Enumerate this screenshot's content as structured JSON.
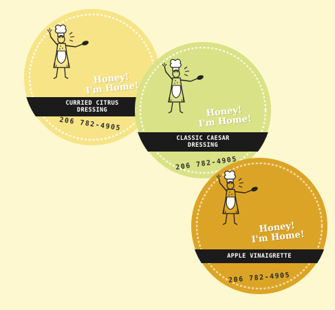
{
  "labels": [
    {
      "brand_line1": "Honey!",
      "brand_line2": "I'm Home!",
      "product_line1": "CURRIED CITRUS",
      "product_line2": "DRESSING",
      "phone": "206 782-4905",
      "color": "#f6e487"
    },
    {
      "brand_line1": "Honey!",
      "brand_line2": "I'm Home!",
      "product_line1": "CLASSIC CAESAR",
      "product_line2": "DRESSING",
      "phone": "206 782-4905",
      "color": "#d9e286"
    },
    {
      "brand_line1": "Honey!",
      "brand_line2": "I'm Home!",
      "product_line1": "APPLE VINAIGRETTE",
      "product_line2": "",
      "phone": "206 782-4905",
      "color": "#dca427"
    }
  ],
  "icons": [
    "chef-woman-figure-icon",
    "scallop-border-icon"
  ]
}
